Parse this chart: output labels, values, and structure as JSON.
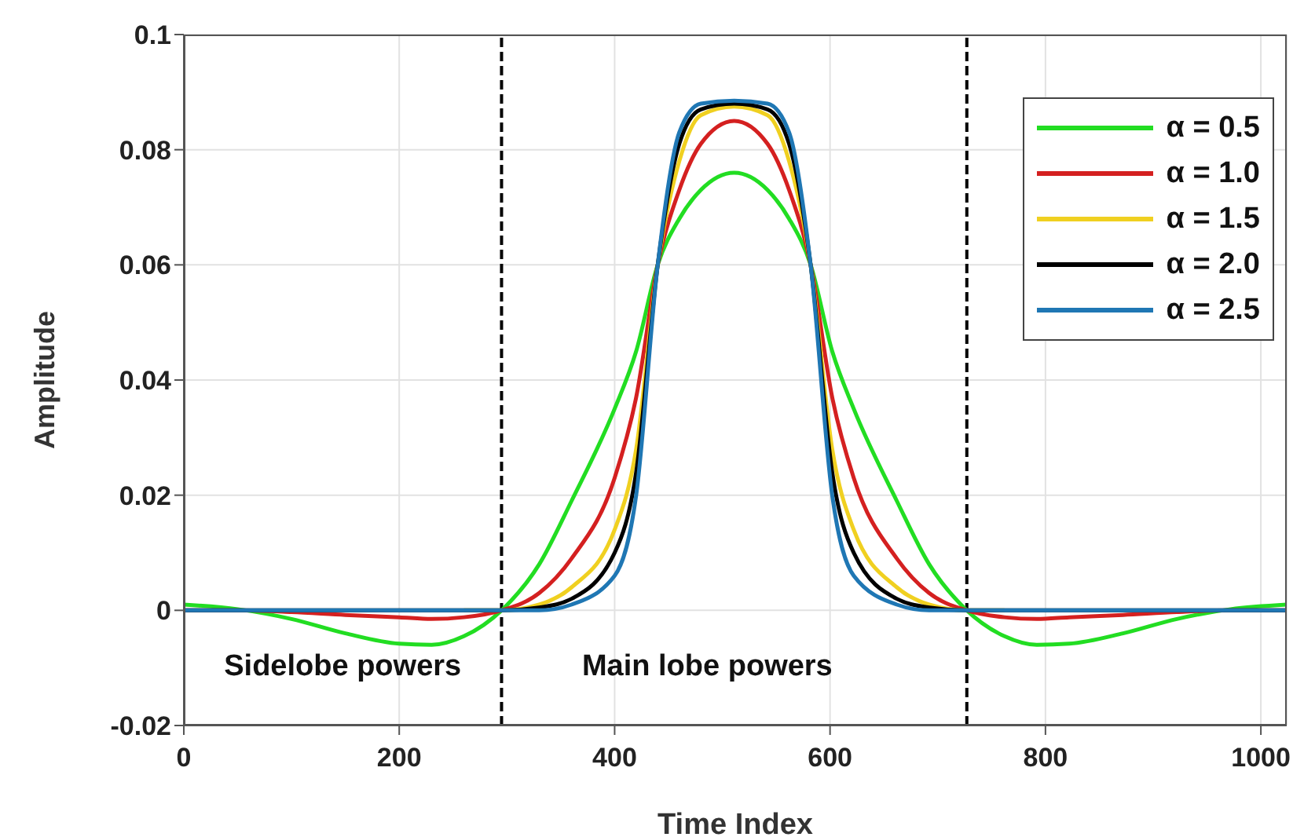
{
  "chart_data": {
    "type": "line",
    "xlabel": "Time Index",
    "ylabel": "Amplitude",
    "x": [
      0,
      50,
      100,
      150,
      200,
      230,
      260,
      295,
      330,
      360,
      400,
      420,
      440,
      460,
      480,
      511,
      542,
      562,
      582,
      602,
      622,
      662,
      692,
      727,
      762,
      792,
      822,
      872,
      922,
      972,
      1024
    ],
    "series": [
      {
        "name": "α = 0.5",
        "color": "#22dd22",
        "values": [
          0.001,
          0.0002,
          -0.0015,
          -0.004,
          -0.0058,
          -0.006,
          -0.0045,
          0,
          0.008,
          0.019,
          0.035,
          0.045,
          0.06,
          0.068,
          0.073,
          0.076,
          0.073,
          0.068,
          0.06,
          0.045,
          0.035,
          0.019,
          0.008,
          0,
          -0.0045,
          -0.006,
          -0.0058,
          -0.004,
          -0.0015,
          0.0002,
          0.001
        ]
      },
      {
        "name": "α = 1.0",
        "color": "#d42020",
        "values": [
          0,
          0,
          -0.0003,
          -0.0008,
          -0.0012,
          -0.0015,
          -0.0012,
          0,
          0.003,
          0.009,
          0.023,
          0.037,
          0.06,
          0.073,
          0.081,
          0.085,
          0.081,
          0.073,
          0.06,
          0.037,
          0.023,
          0.009,
          0.003,
          0,
          -0.0012,
          -0.0015,
          -0.0012,
          -0.0008,
          -0.0003,
          0,
          0
        ]
      },
      {
        "name": "α = 1.5",
        "color": "#f0d020",
        "values": [
          null,
          null,
          null,
          null,
          null,
          null,
          0,
          0,
          0.001,
          0.004,
          0.014,
          0.028,
          0.06,
          0.078,
          0.086,
          0.0875,
          0.086,
          0.078,
          0.06,
          0.028,
          0.014,
          0.004,
          0.001,
          0,
          0,
          null,
          null,
          null,
          null,
          null,
          null
        ]
      },
      {
        "name": "α = 2.0",
        "color": "#000000",
        "values": [
          0,
          0,
          0,
          0,
          0,
          0,
          0,
          0,
          0.0005,
          0.002,
          0.01,
          0.024,
          0.06,
          0.081,
          0.087,
          0.088,
          0.087,
          0.081,
          0.06,
          0.024,
          0.01,
          0.002,
          0.0005,
          0,
          0,
          0,
          0,
          0,
          0,
          0,
          0
        ]
      },
      {
        "name": "α = 2.5",
        "color": "#1f77b4",
        "values": [
          0,
          0,
          0,
          0,
          0,
          0,
          0,
          0,
          0,
          0.001,
          0.006,
          0.02,
          0.06,
          0.083,
          0.088,
          0.0885,
          0.088,
          0.083,
          0.06,
          0.02,
          0.006,
          0.001,
          0,
          0,
          0,
          0,
          0,
          0,
          0,
          0,
          0
        ]
      }
    ],
    "xlim": [
      0,
      1024
    ],
    "xticks": [
      0,
      200,
      400,
      600,
      800,
      1000
    ],
    "ylim": [
      -0.02,
      0.1
    ],
    "yticks": [
      -0.02,
      0,
      0.02,
      0.04,
      0.06,
      0.08,
      0.1
    ],
    "ref_lines": [
      {
        "axis": "x",
        "value": 295,
        "color": "#000000",
        "line_style": "dashed"
      },
      {
        "axis": "x",
        "value": 727,
        "color": "#000000",
        "line_style": "dashed"
      }
    ],
    "annotations": [
      "Sidelobe powers",
      "Main lobe powers"
    ],
    "grid": true,
    "legend": "top right",
    "marker": "none",
    "line_style": "solid"
  }
}
